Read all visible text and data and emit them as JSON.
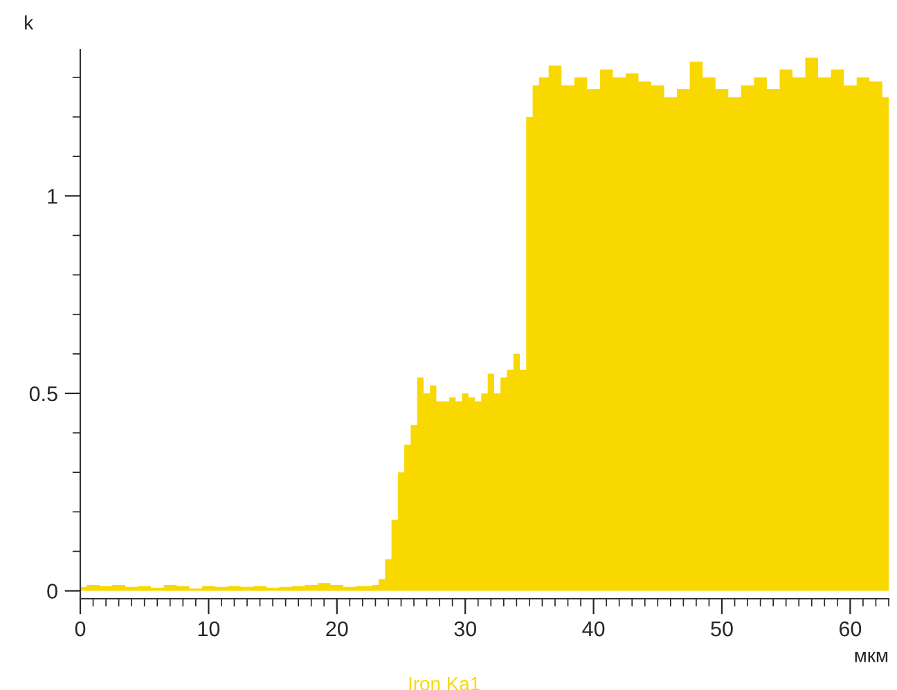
{
  "chart_data": {
    "type": "area",
    "ylabel": "k",
    "xlabel": "мкм",
    "x": [
      0,
      1,
      2,
      3,
      4,
      5,
      6,
      7,
      8,
      9,
      10,
      11,
      12,
      13,
      14,
      15,
      16,
      17,
      18,
      19,
      20,
      21,
      22,
      22.5,
      23,
      23.5,
      24,
      24.5,
      25,
      25.5,
      26,
      26.5,
      27,
      27.5,
      28,
      28.5,
      29,
      29.5,
      30,
      30.5,
      31,
      31.5,
      32,
      32.5,
      33,
      33.5,
      34,
      34.5,
      35,
      35.5,
      36,
      37,
      38,
      39,
      40,
      41,
      42,
      43,
      44,
      45,
      46,
      47,
      48,
      49,
      50,
      51,
      52,
      53,
      54,
      55,
      56,
      57,
      58,
      59,
      60,
      61,
      62,
      63
    ],
    "series": [
      {
        "name": "Iron Ka1",
        "color": "#f9d800",
        "values": [
          0.01,
          0.015,
          0.012,
          0.015,
          0.01,
          0.012,
          0.008,
          0.015,
          0.012,
          0.006,
          0.012,
          0.01,
          0.012,
          0.01,
          0.012,
          0.008,
          0.01,
          0.012,
          0.015,
          0.02,
          0.015,
          0.01,
          0.012,
          0.012,
          0.015,
          0.03,
          0.08,
          0.18,
          0.3,
          0.37,
          0.42,
          0.54,
          0.5,
          0.52,
          0.48,
          0.48,
          0.49,
          0.48,
          0.5,
          0.49,
          0.48,
          0.5,
          0.55,
          0.5,
          0.54,
          0.56,
          0.6,
          0.56,
          1.2,
          1.28,
          1.3,
          1.33,
          1.28,
          1.3,
          1.27,
          1.32,
          1.3,
          1.31,
          1.29,
          1.28,
          1.25,
          1.27,
          1.34,
          1.3,
          1.27,
          1.25,
          1.28,
          1.3,
          1.27,
          1.32,
          1.3,
          1.35,
          1.3,
          1.32,
          1.28,
          1.3,
          1.29,
          1.25
        ]
      }
    ],
    "xlim": [
      0,
      63
    ],
    "ylim": [
      -0.02,
      1.37
    ],
    "xticks": [
      0,
      10,
      20,
      30,
      40,
      50,
      60
    ],
    "yticks": [
      0,
      0.5,
      1
    ],
    "grid": false,
    "legend": "bottom"
  }
}
